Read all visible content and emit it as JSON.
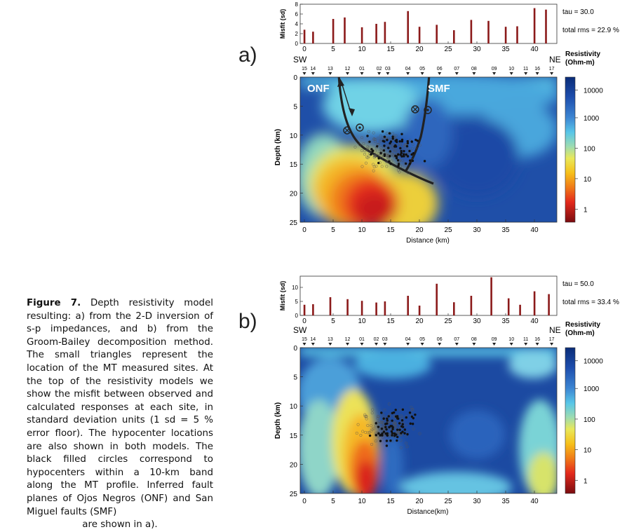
{
  "caption": {
    "label": "Figure 7.",
    "body": "Depth resistivity model resulting: a) from the 2-D inversion of s-p impedances, and b) from the Groom-Bailey decomposition method. The small triangles represent the location of the MT measured sites. At the top of the resistivity models we show the misfit between observed and calculated responses at each site, in standard deviation units (1 sd = 5 % error floor). The hypocenter locations are also shown in both models. The black filled circles correspond to hypocenters within a 10-km band along the MT profile. Inferred fault planes of Ojos Negros (ONF) and San Miguel faults (SMF)",
    "last_line": "are shown in a)."
  },
  "colors": {
    "misfit_bar": "#8b1a1a",
    "fault_line": "#222222"
  },
  "chart_data": [
    {
      "panel": "a)",
      "type": "bar",
      "ylabel": "Misfit (sd)",
      "ylim": [
        0,
        8
      ],
      "yticks": [
        "0",
        "2",
        "4",
        "6",
        "8"
      ],
      "xticks": [
        "0",
        "5",
        "10",
        "15",
        "20",
        "25",
        "30",
        "35",
        "40"
      ],
      "x": [
        0,
        1.5,
        5,
        7,
        10,
        12.5,
        14,
        18,
        20,
        23,
        26,
        29,
        32,
        35,
        37,
        40,
        42
      ],
      "values": [
        2.8,
        2.4,
        5.0,
        5.3,
        3.3,
        4.0,
        4.4,
        6.6,
        3.4,
        3.8,
        2.7,
        4.8,
        4.6,
        3.4,
        3.5,
        7.2,
        6.9
      ],
      "tau": "tau = 30.0",
      "rms": "total rms =  22.9 %"
    },
    {
      "panel": "a)",
      "type": "heatmap",
      "sw": "SW",
      "ne": "NE",
      "sites": [
        "15",
        "14",
        "13",
        "12",
        "01",
        "02",
        "03",
        "04",
        "05",
        "06",
        "07",
        "08",
        "09",
        "10",
        "11",
        "16",
        "17"
      ],
      "site_x": [
        0,
        1.5,
        4.5,
        7.5,
        10,
        13,
        14.5,
        18,
        20.5,
        23.5,
        26.5,
        29.5,
        33,
        36,
        38.5,
        40.5,
        43
      ],
      "xlabel": "Distance (km)",
      "ylabel": "Depth (km)",
      "xticks": [
        "0",
        "5",
        "10",
        "15",
        "20",
        "25",
        "30",
        "35",
        "40"
      ],
      "yticks": [
        "0",
        "5",
        "10",
        "15",
        "20",
        "25"
      ],
      "xlim": [
        -1,
        44
      ],
      "ylim": [
        0,
        25
      ],
      "faults": [
        "ONF",
        "SMF"
      ],
      "colorbar_title": [
        "Resistivity",
        "(Ohm-m)"
      ],
      "colorbar_ticks": [
        "10000",
        "1000",
        "100",
        "10",
        "1"
      ]
    },
    {
      "panel": "b)",
      "type": "bar",
      "ylabel": "Misfit (sd)",
      "ylim": [
        0,
        14
      ],
      "yticks": [
        "0",
        "5",
        "10"
      ],
      "xticks": [
        "0",
        "5",
        "10",
        "15",
        "20",
        "25",
        "30",
        "35",
        "40"
      ],
      "x": [
        0,
        1.5,
        4.5,
        7.5,
        10,
        12.5,
        14,
        18,
        20,
        23,
        26,
        29,
        32.5,
        35.5,
        37.5,
        40,
        42.5
      ],
      "values": [
        3.8,
        4.0,
        6.5,
        5.8,
        5.2,
        4.6,
        5.0,
        7.0,
        3.5,
        11.3,
        4.7,
        7.0,
        13.6,
        6.1,
        3.8,
        8.6,
        7.6
      ],
      "tau": "tau = 50.0",
      "rms": "total rms =  33.4 %"
    },
    {
      "panel": "b)",
      "type": "heatmap",
      "sw": "SW",
      "ne": "NE",
      "sites": [
        "15",
        "14",
        "13",
        "12",
        "01",
        "02",
        "03",
        "04",
        "05",
        "06",
        "07",
        "08",
        "09",
        "10",
        "11",
        "16",
        "17"
      ],
      "site_x": [
        0,
        1.5,
        4.5,
        7.5,
        10,
        12.5,
        14,
        18,
        20.5,
        23.5,
        26.5,
        29.5,
        33,
        36,
        38.5,
        40.5,
        43
      ],
      "xlabel": "Distance(km)",
      "ylabel": "Depth (km)",
      "xticks": [
        "0",
        "5",
        "10",
        "15",
        "20",
        "25",
        "30",
        "35",
        "40"
      ],
      "yticks": [
        "0",
        "5",
        "10",
        "15",
        "20",
        "25"
      ],
      "xlim": [
        -1,
        44
      ],
      "ylim": [
        0,
        25
      ],
      "colorbar_title": [
        "Resistivity",
        "(Ohm-m)"
      ],
      "colorbar_ticks": [
        "10000",
        "1000",
        "100",
        "10",
        "1"
      ]
    }
  ]
}
